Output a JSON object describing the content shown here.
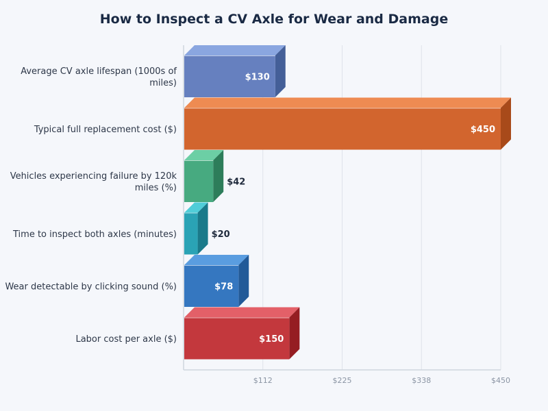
{
  "chart_data": {
    "type": "bar",
    "orientation": "horizontal",
    "style": "3d",
    "title": "How to Inspect a CV Axle for Wear and Damage",
    "xlabel": "",
    "ylabel": "",
    "xlim": [
      0,
      450
    ],
    "x_ticks": [
      "$112",
      "$225",
      "$338",
      "$450"
    ],
    "x_tick_values": [
      112.5,
      225,
      337.5,
      450
    ],
    "grid": true,
    "categories": [
      [
        "Average CV axle lifespan (1000s of",
        "miles)"
      ],
      [
        "Typical full replacement cost ($)"
      ],
      [
        "Vehicles experiencing failure by 120k",
        "miles (%)"
      ],
      [
        "Time to inspect both axles (minutes)"
      ],
      [
        "Wear detectable by clicking sound (%)"
      ],
      [
        "Labor cost per axle ($)"
      ]
    ],
    "values": [
      130,
      450,
      42,
      20,
      78,
      150
    ],
    "value_labels": [
      "$130",
      "$450",
      "$42",
      "$20",
      "$78",
      "$150"
    ],
    "colors": [
      {
        "front": "#6680bf",
        "top": "#8aa6e0",
        "side": "#445f98"
      },
      {
        "front": "#d2652e",
        "top": "#ee8b52",
        "side": "#a84a1a"
      },
      {
        "front": "#47aa80",
        "top": "#6ccfa5",
        "side": "#2d7d5a"
      },
      {
        "front": "#2aa3b5",
        "top": "#50cdd8",
        "side": "#1a7a8a"
      },
      {
        "front": "#3577c0",
        "top": "#5a9de0",
        "side": "#225a98"
      },
      {
        "front": "#c3383d",
        "top": "#e36068",
        "side": "#951d22"
      }
    ]
  }
}
